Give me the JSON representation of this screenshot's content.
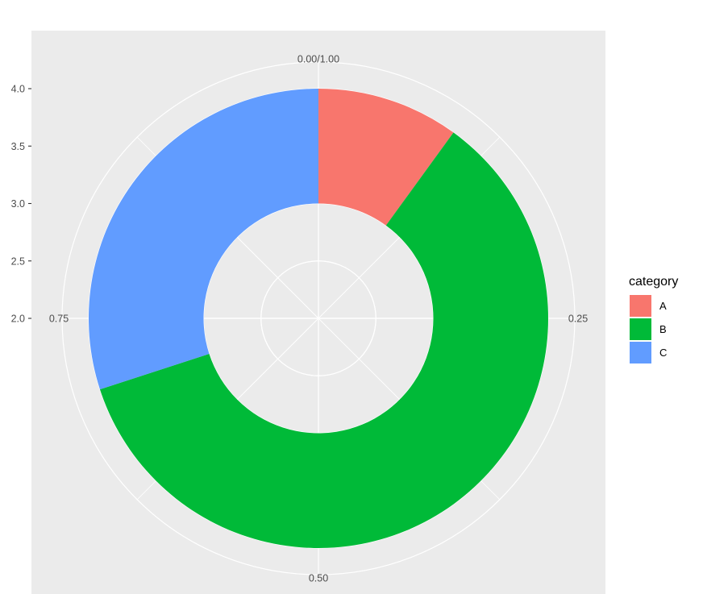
{
  "chart_data": {
    "type": "pie",
    "subtype": "donut",
    "categories": [
      "A",
      "B",
      "C"
    ],
    "values": [
      10,
      60,
      30
    ],
    "colors": {
      "A": "#F8766D",
      "B": "#00BA38",
      "C": "#619CFF"
    },
    "ring_x": [
      3,
      4
    ],
    "radial_axis": {
      "ticks": [
        "2.0",
        "2.5",
        "3.0",
        "3.5",
        "4.0"
      ],
      "range": [
        2.0,
        4.0
      ]
    },
    "theta_axis": {
      "ticks": [
        "0.00/1.00",
        "0.25",
        "0.50",
        "0.75"
      ]
    },
    "legend": {
      "title": "category",
      "position": "right",
      "entries": [
        "A",
        "B",
        "C"
      ]
    },
    "panel_background": "#EBEBEB",
    "grid": true
  }
}
